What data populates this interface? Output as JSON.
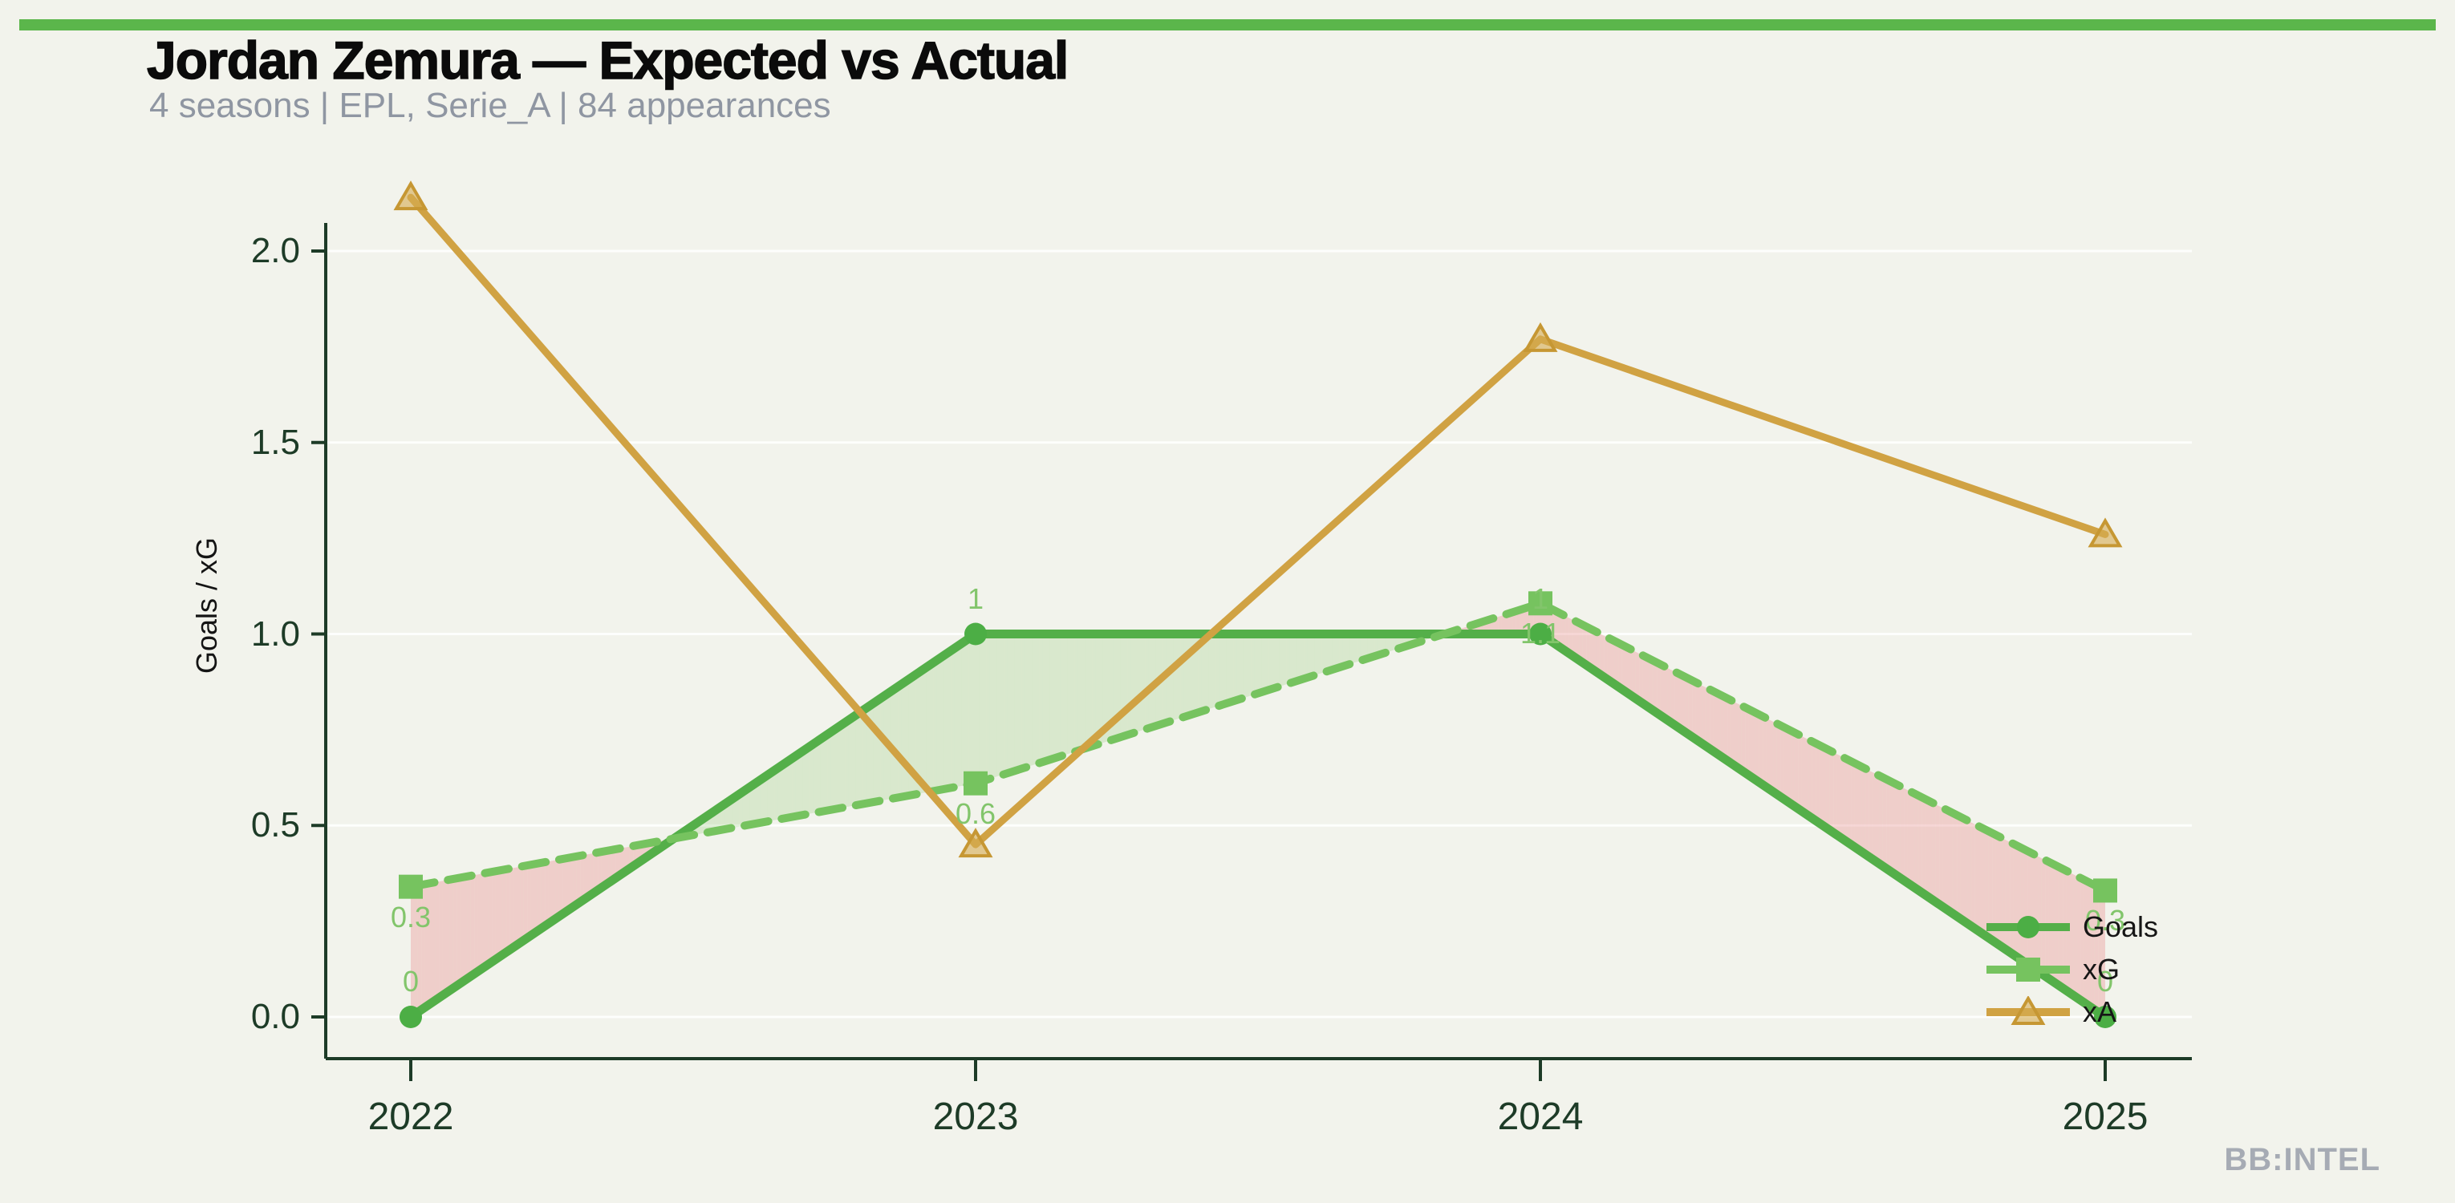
{
  "header": {
    "title": "Jordan Zemura — Expected vs Actual",
    "subtitle": "4 seasons | EPL, Serie_A | 84 appearances"
  },
  "watermark": "BB:INTEL",
  "colors": {
    "background": "#f2f3ec",
    "top_bar": "#5bb64b",
    "title": "#0b0b0b",
    "subtitle": "#8f96a2",
    "axis": "#1d3b27",
    "tick_label": "#1d3b27",
    "value_label": "#82c56b",
    "goals_line": "#54af49",
    "goals_marker": "#4cae45",
    "xg_line": "#76c35f",
    "xa_line": "#d0a243",
    "xa_marker_fill": "rgba(214,172,82,0.6)",
    "xa_marker_edge": "#c69733",
    "fill_goals_above_xg": "rgba(142,199,110,0.25)",
    "fill_xg_above_goals": "rgba(231,121,121,0.30)",
    "gridline": "rgba(255,255,255,0.85)",
    "legend_text": "#161616",
    "watermark": "#a6abb4"
  },
  "chart_data": {
    "type": "line",
    "x_labels": [
      "2022",
      "2023",
      "2024",
      "2025"
    ],
    "ylabel": "Goals / xG",
    "y_ticks": [
      "0.0",
      "0.5",
      "1.0",
      "1.5",
      "2.0"
    ],
    "ylim": [
      0,
      2.1
    ],
    "grid": "horizontal-faint",
    "legend_position": "lower-right-inside",
    "series": [
      {
        "name": "Goals",
        "marker": "circle",
        "line_style": "solid",
        "color": "#54af49",
        "values": [
          0,
          1,
          1,
          0
        ],
        "point_labels": [
          "0",
          "1",
          "1",
          "0"
        ],
        "label_side": "above"
      },
      {
        "name": "xG",
        "marker": "square",
        "line_style": "dashed",
        "color": "#76c35f",
        "values": [
          0.34,
          0.61,
          1.08,
          0.33
        ],
        "point_labels": [
          "0.3",
          "0.6",
          "1.1",
          "0.3"
        ],
        "label_side": "below"
      },
      {
        "name": "xA",
        "marker": "triangle",
        "line_style": "solid",
        "color": "#d0a243",
        "values": [
          2.14,
          0.45,
          1.77,
          1.26
        ],
        "point_labels": [
          "",
          "",
          "",
          ""
        ],
        "label_side": "none"
      }
    ]
  }
}
